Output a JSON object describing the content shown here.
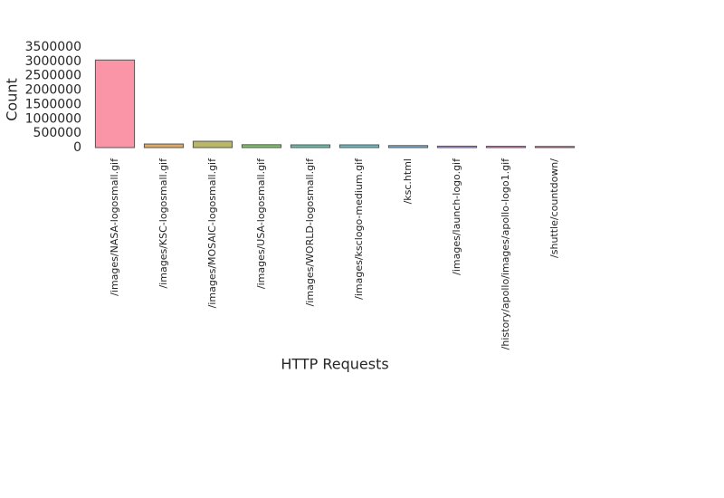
{
  "chart_data": {
    "type": "bar",
    "x_label": "HTTP Requests",
    "y_label": "Count",
    "categories": [
      "/images/NASA-logosmall.gif",
      "/images/KSC-logosmall.gif",
      "/images/MOSAIC-logosmall.gif",
      "/images/USA-logosmall.gif",
      "/images/WORLD-logosmall.gif",
      "/images/ksclogo-medium.gif",
      "/ksc.html",
      "/images/launch-logo.gif",
      "/history/apollo/images/apollo-logo1.gif",
      "/shuttle/countdown/"
    ],
    "values": [
      3050000,
      125000,
      220000,
      100000,
      95000,
      95000,
      70000,
      50000,
      45000,
      40000
    ],
    "colors": [
      "#f77189",
      "#d58c32",
      "#a4a031",
      "#50b131",
      "#34ae91",
      "#37abb5",
      "#3ba3ec",
      "#bb83f4",
      "#f564d4",
      "#f36da4"
    ],
    "ylim": [
      0,
      3500000
    ],
    "yticks": [
      0,
      500000,
      1000000,
      1500000,
      2000000,
      2500000,
      3000000,
      3500000
    ],
    "grid": false
  }
}
